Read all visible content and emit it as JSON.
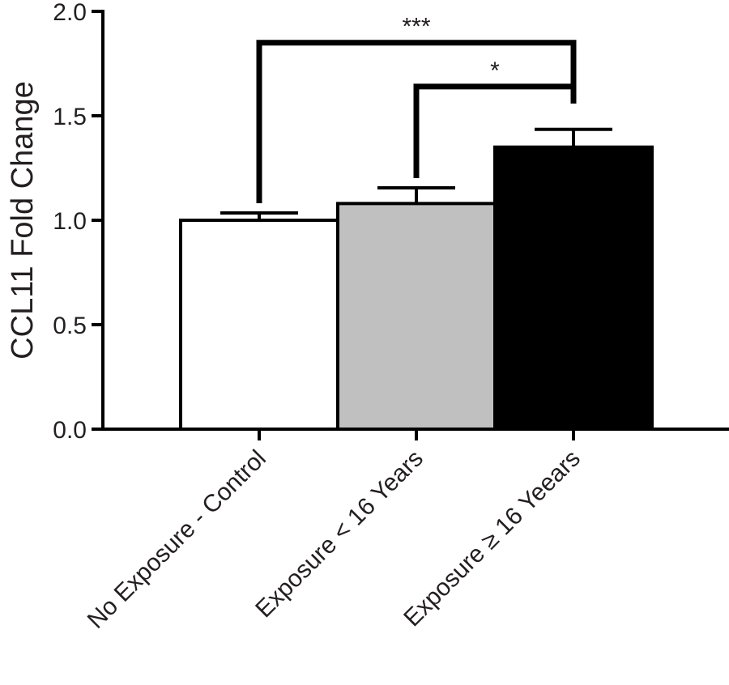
{
  "chart_data": {
    "type": "bar",
    "categories": [
      "No Exposure - Control",
      "Exposure < 16 Years",
      "Exposure ≥ 16 Yeears"
    ],
    "values": [
      1.0,
      1.08,
      1.35
    ],
    "errors": [
      0.035,
      0.075,
      0.085
    ],
    "bar_colors": [
      "#ffffff",
      "#c0c0c0",
      "#000000"
    ],
    "ylabel": "CCL11 Fold Change",
    "xlabel": "",
    "ylim": [
      0,
      2.0
    ],
    "yticks": [
      "0.0",
      "0.5",
      "1.0",
      "1.5",
      "2.0"
    ],
    "grid": false,
    "significance": [
      {
        "label": "***",
        "from": 0,
        "to": 2,
        "level": 1.85
      },
      {
        "label": "*",
        "from": 1,
        "to": 2,
        "level": 1.64
      }
    ]
  }
}
